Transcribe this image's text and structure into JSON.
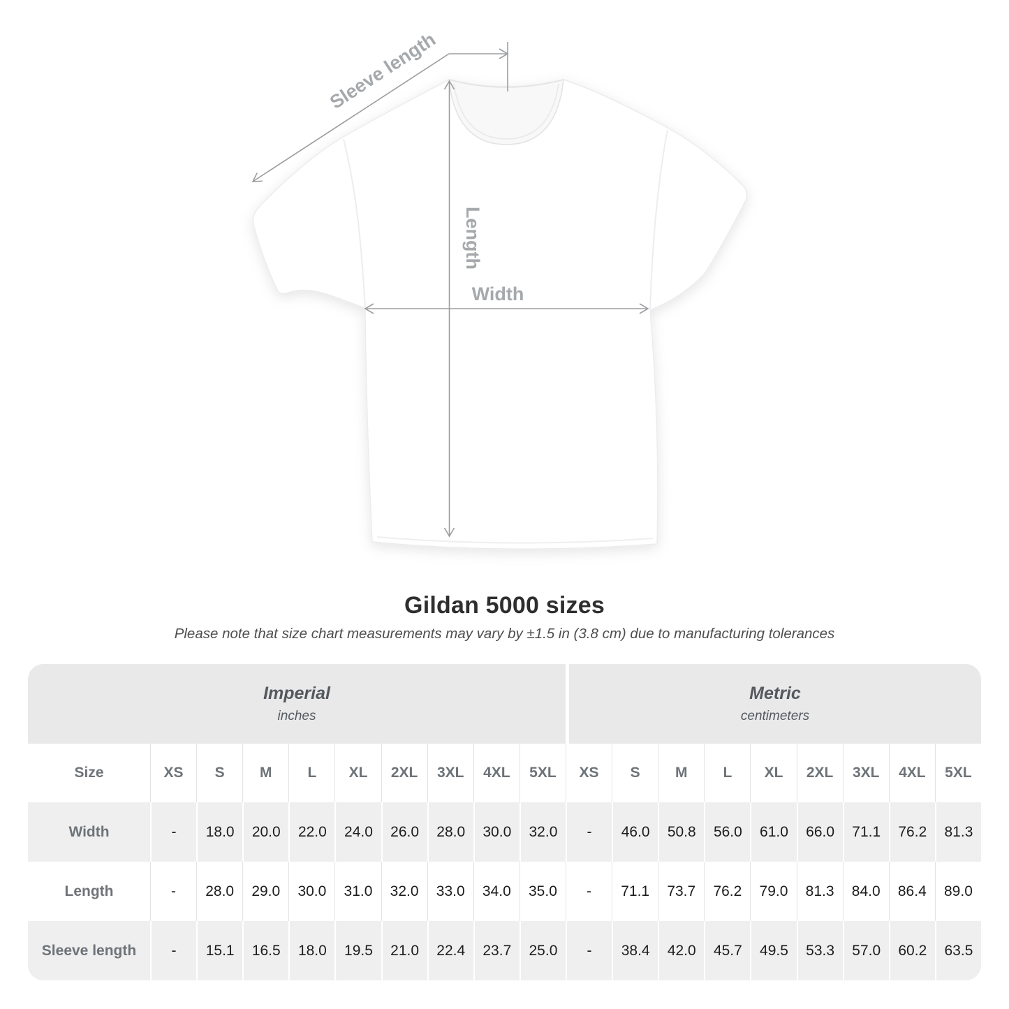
{
  "title": "Gildan 5000 sizes",
  "subtitle": "Please note that size chart measurements may vary by ±1.5 in (3.8 cm) due to manufacturing tolerances",
  "diagram": {
    "sleeve_length_label": "Sleeve length",
    "length_label": "Length",
    "width_label": "Width"
  },
  "size_table": {
    "corner_label": "Size",
    "groups": [
      {
        "name": "Imperial",
        "unit": "inches"
      },
      {
        "name": "Metric",
        "unit": "centimeters"
      }
    ],
    "sizes": [
      "XS",
      "S",
      "M",
      "L",
      "XL",
      "2XL",
      "3XL",
      "4XL",
      "5XL"
    ],
    "rows": [
      {
        "label": "Width",
        "imperial": [
          "-",
          "18.0",
          "20.0",
          "22.0",
          "24.0",
          "26.0",
          "28.0",
          "30.0",
          "32.0"
        ],
        "metric": [
          "-",
          "46.0",
          "50.8",
          "56.0",
          "61.0",
          "66.0",
          "71.1",
          "76.2",
          "81.3"
        ]
      },
      {
        "label": "Length",
        "imperial": [
          "-",
          "28.0",
          "29.0",
          "30.0",
          "31.0",
          "32.0",
          "33.0",
          "34.0",
          "35.0"
        ],
        "metric": [
          "-",
          "71.1",
          "73.7",
          "76.2",
          "79.0",
          "81.3",
          "84.0",
          "86.4",
          "89.0"
        ]
      },
      {
        "label": "Sleeve length",
        "imperial": [
          "-",
          "15.1",
          "16.5",
          "18.0",
          "19.5",
          "21.0",
          "22.4",
          "23.7",
          "25.0"
        ],
        "metric": [
          "-",
          "38.4",
          "42.0",
          "45.7",
          "49.5",
          "53.3",
          "57.0",
          "60.2",
          "63.5"
        ]
      }
    ]
  },
  "colors": {
    "annotation_line": "#9b9ea1",
    "annotation_label": "#a6a9ac",
    "band_background": "#e9e9ea",
    "row_alt_background": "#efefef",
    "label_text": "#6d7378",
    "value_text": "#1d1d1f"
  },
  "chart_data": {
    "type": "table",
    "title": "Gildan 5000 sizes",
    "columns": [
      "XS",
      "S",
      "M",
      "L",
      "XL",
      "2XL",
      "3XL",
      "4XL",
      "5XL"
    ],
    "unit_groups": [
      "Imperial (inches)",
      "Metric (centimeters)"
    ],
    "rows": [
      {
        "label": "Width",
        "imperial": [
          null,
          18.0,
          20.0,
          22.0,
          24.0,
          26.0,
          28.0,
          30.0,
          32.0
        ],
        "metric": [
          null,
          46.0,
          50.8,
          56.0,
          61.0,
          66.0,
          71.1,
          76.2,
          81.3
        ]
      },
      {
        "label": "Length",
        "imperial": [
          null,
          28.0,
          29.0,
          30.0,
          31.0,
          32.0,
          33.0,
          34.0,
          35.0
        ],
        "metric": [
          null,
          71.1,
          73.7,
          76.2,
          79.0,
          81.3,
          84.0,
          86.4,
          89.0
        ]
      },
      {
        "label": "Sleeve length",
        "imperial": [
          null,
          15.1,
          16.5,
          18.0,
          19.5,
          21.0,
          22.4,
          23.7,
          25.0
        ],
        "metric": [
          null,
          38.4,
          42.0,
          45.7,
          49.5,
          53.3,
          57.0,
          60.2,
          63.5
        ]
      }
    ]
  }
}
